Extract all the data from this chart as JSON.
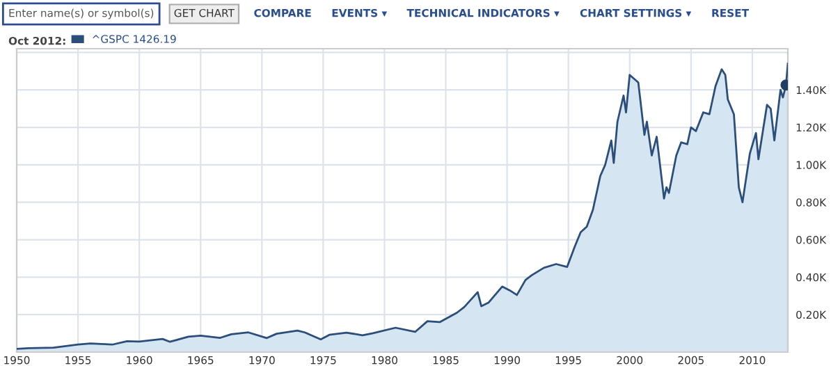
{
  "chart_data": {
    "type": "area",
    "annotations": [
      "Enter name(s) or symbol(s)",
      "GET CHART",
      "COMPARE",
      "EVENTS ▾",
      "TECHNICAL INDICATORS ▾",
      "CHART SETTINGS ▾",
      "RESET",
      "Oct 2012:"
    ],
    "series": [
      {
        "name": "^GSPC 1426.19",
        "color": "#2b4f7a",
        "x": [
          1950,
          1951,
          1953,
          1955,
          1956,
          1957.8,
          1959,
          1960,
          1961.9,
          1962.5,
          1964,
          1965,
          1966.6,
          1967.5,
          1968.9,
          1970.4,
          1971.2,
          1972.9,
          1973.5,
          1974.8,
          1975.5,
          1976.9,
          1978.2,
          1979,
          1980.9,
          1982.5,
          1983.5,
          1984.5,
          1985.9,
          1986.5,
          1987.6,
          1987.9,
          1988.5,
          1989.6,
          1990.2,
          1990.8,
          1991.5,
          1992,
          1993,
          1994,
          1994.9,
          1995.5,
          1996,
          1996.5,
          1997,
          1997.6,
          1998,
          1998.5,
          1998.7,
          1999,
          1999.5,
          1999.7,
          2000,
          2000.7,
          2001.2,
          2001.4,
          2001.8,
          2002.2,
          2002.8,
          2003,
          2003.2,
          2003.8,
          2004.2,
          2004.7,
          2005,
          2005.4,
          2006,
          2006.5,
          2007,
          2007.5,
          2007.8,
          2008,
          2008.5,
          2008.9,
          2009.2,
          2009.8,
          2010.3,
          2010.5,
          2011.2,
          2011.5,
          2011.8,
          2012.3,
          2012.5,
          2012.75,
          2012.9
        ],
        "values": [
          17,
          21,
          24,
          40,
          46,
          40,
          58,
          56,
          70,
          55,
          82,
          88,
          76,
          95,
          105,
          75,
          98,
          115,
          105,
          68,
          92,
          104,
          90,
          100,
          130,
          108,
          165,
          160,
          210,
          240,
          320,
          245,
          265,
          350,
          330,
          305,
          385,
          410,
          450,
          470,
          455,
          560,
          640,
          670,
          760,
          940,
          1000,
          1130,
          1010,
          1230,
          1370,
          1280,
          1480,
          1440,
          1160,
          1230,
          1050,
          1150,
          820,
          880,
          850,
          1050,
          1120,
          1110,
          1200,
          1180,
          1280,
          1270,
          1420,
          1510,
          1480,
          1350,
          1270,
          880,
          800,
          1060,
          1170,
          1030,
          1320,
          1300,
          1130,
          1400,
          1360,
          1426,
          1540
        ]
      },
      {
        "type": "scatter",
        "color": "#1f3f66",
        "x": [
          2012.75
        ],
        "values": [
          1426
        ],
        "marker": "circle"
      }
    ],
    "xlim": [
      1950,
      2012.9
    ],
    "xticks": [
      1950,
      1955,
      1960,
      1965,
      1970,
      1975,
      1980,
      1985,
      1990,
      1995,
      2000,
      2005,
      2010
    ],
    "ylim": [
      0,
      1620
    ],
    "yticks": [
      {
        "value": 200,
        "label": "0.20K"
      },
      {
        "value": 400,
        "label": "0.40K"
      },
      {
        "value": 600,
        "label": "0.60K"
      },
      {
        "value": 800,
        "label": "0.80K"
      },
      {
        "value": 1000,
        "label": "1.00K"
      },
      {
        "value": 1200,
        "label": "1.20K"
      },
      {
        "value": 1400,
        "label": "1.40K"
      },
      {
        "value": 1600,
        "label": null
      }
    ],
    "grid": true,
    "legend": "top left"
  }
}
